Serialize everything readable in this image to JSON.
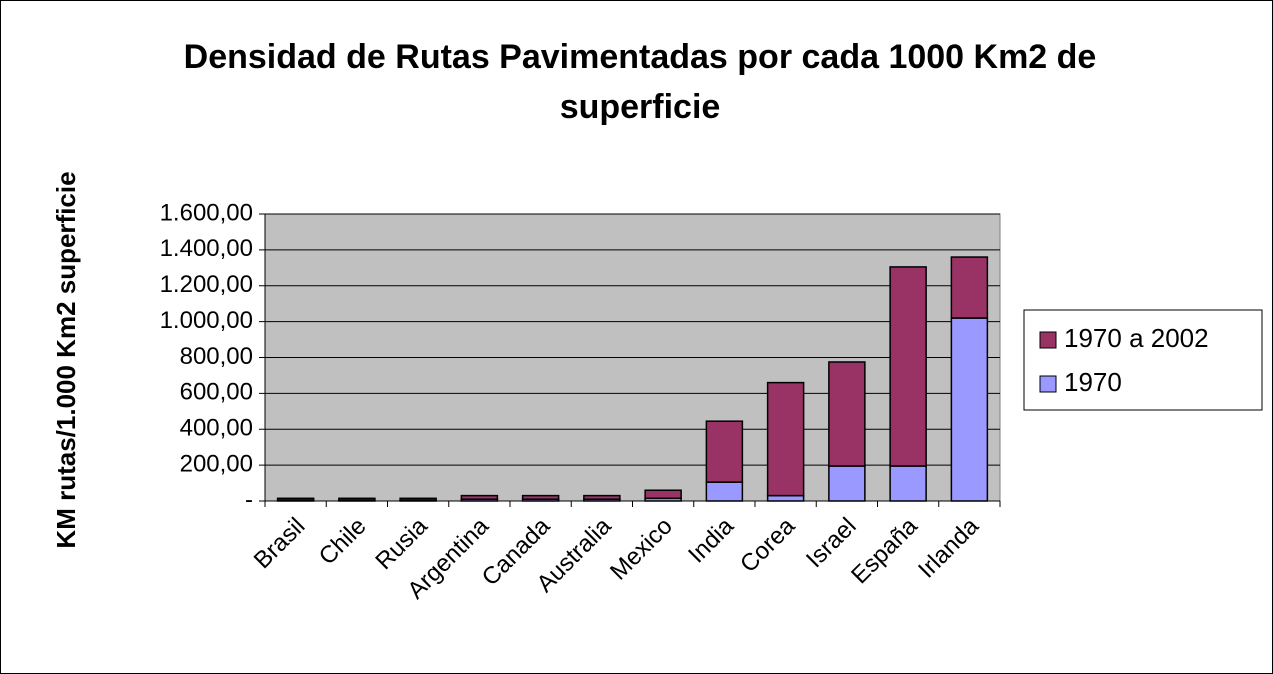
{
  "chart_data": {
    "type": "stacked_bar",
    "title": "Densidad de Rutas Pavimentadas por cada 1000 Km2 de superficie",
    "ylabel": "KM rutas/1.000 Km2 superficie",
    "categories": [
      "Brasil",
      "Chile",
      "Rusia",
      "Argentina",
      "Canada",
      "Australia",
      "Mexico",
      "India",
      "Corea",
      "Israel",
      "España",
      "Irlanda"
    ],
    "series": [
      {
        "name": "1970",
        "color": "#9999ff",
        "values": [
          5,
          5,
          5,
          10,
          10,
          10,
          15,
          105,
          30,
          195,
          195,
          1020
        ]
      },
      {
        "name": "1970 a 2002",
        "color": "#993366",
        "values": [
          10,
          10,
          10,
          20,
          20,
          20,
          45,
          340,
          630,
          580,
          1110,
          340
        ]
      }
    ],
    "ylim": [
      0,
      1600
    ],
    "yticks": [
      {
        "value": 0,
        "label": "-"
      },
      {
        "value": 200,
        "label": "200,00"
      },
      {
        "value": 400,
        "label": "400,00"
      },
      {
        "value": 600,
        "label": "600,00"
      },
      {
        "value": 800,
        "label": "800,00"
      },
      {
        "value": 1000,
        "label": "1.000,00"
      },
      {
        "value": 1200,
        "label": "1.200,00"
      },
      {
        "value": 1400,
        "label": "1.400,00"
      },
      {
        "value": 1600,
        "label": "1.600,00"
      }
    ],
    "grid": true,
    "legend": "right"
  }
}
